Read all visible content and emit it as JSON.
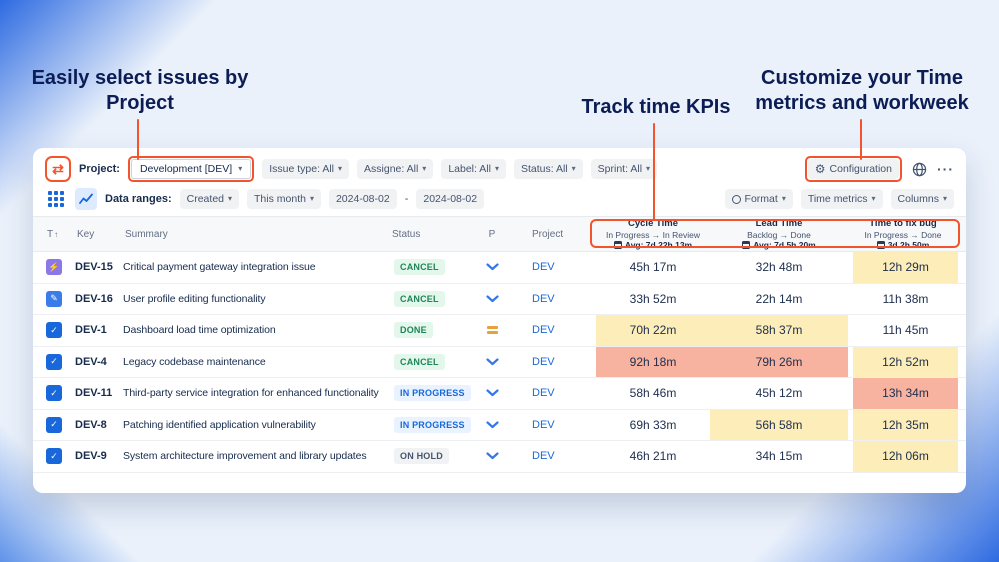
{
  "colors": {
    "accent_orange": "#F2542D",
    "highlight_yellow": "#FCEDB9",
    "highlight_red": "#F8B2A0",
    "link_blue": "#1868DB"
  },
  "icons": {
    "chevron_down": "▾",
    "gear": "⚙",
    "app_logo": "⇄",
    "more": "···",
    "sort_up": "↑"
  },
  "annotations": {
    "left_line1": "Easily select issues by",
    "left_line2": "Project",
    "center": "Track time KPIs",
    "right_line1": "Customize your Time",
    "right_line2": "metrics and workweek"
  },
  "toolbar": {
    "project_label": "Project:",
    "project_value": "Development [DEV]",
    "filters": [
      {
        "label": "Issue type: All"
      },
      {
        "label": "Assigne: All"
      },
      {
        "label": "Label: All"
      },
      {
        "label": "Status: All"
      },
      {
        "label": "Sprint: All"
      }
    ],
    "configuration_label": "Configuration"
  },
  "subtoolbar": {
    "data_ranges_label": "Data ranges:",
    "created_value": "Created",
    "period_value": "This month",
    "date_from": "2024-08-02",
    "date_separator": "-",
    "date_to": "2024-08-02",
    "format_label": "Format",
    "time_metrics_label": "Time metrics",
    "columns_label": "Columns"
  },
  "table": {
    "headers": {
      "t": "T",
      "key": "Key",
      "summary": "Summary",
      "status": "Status",
      "p": "P",
      "project": "Project"
    },
    "metrics": [
      {
        "title": "Cycle Time",
        "subtitle": "In Progress → In Review",
        "avg": "Avg: 7d 22h 13m"
      },
      {
        "title": "Lead Time",
        "subtitle": "Backlog → Done",
        "avg": "Avg: 7d 5h 20m"
      },
      {
        "title": "Time to fix bug",
        "subtitle": "In Progress → Done",
        "avg": "3d 2h 50m"
      }
    ],
    "rows": [
      {
        "type": "bolt",
        "key": "DEV-15",
        "summary": "Critical payment gateway integration issue",
        "status": "CANCEL",
        "status_kind": "cancel",
        "priority": "chevron",
        "project": "DEV",
        "cycle": "45h 17m",
        "cycle_bg": "w",
        "lead": "32h 48m",
        "lead_bg": "w",
        "fix": "12h 29m",
        "fix_bg": "y"
      },
      {
        "type": "pencil",
        "key": "DEV-16",
        "summary": "User profile editing functionality",
        "status": "CANCEL",
        "status_kind": "cancel",
        "priority": "chevron",
        "project": "DEV",
        "cycle": "33h 52m",
        "cycle_bg": "w",
        "lead": "22h 14m",
        "lead_bg": "w",
        "fix": "11h 38m",
        "fix_bg": "w"
      },
      {
        "type": "check",
        "key": "DEV-1",
        "summary": "Dashboard load time optimization",
        "status": "DONE",
        "status_kind": "done",
        "priority": "equal",
        "project": "DEV",
        "cycle": "70h 22m",
        "cycle_bg": "y",
        "lead": "58h 37m",
        "lead_bg": "y",
        "fix": "11h 45m",
        "fix_bg": "w"
      },
      {
        "type": "check",
        "key": "DEV-4",
        "summary": "Legacy codebase maintenance",
        "status": "CANCEL",
        "status_kind": "cancel",
        "priority": "chevron",
        "project": "DEV",
        "cycle": "92h 18m",
        "cycle_bg": "r",
        "lead": "79h 26m",
        "lead_bg": "r",
        "fix": "12h 52m",
        "fix_bg": "y"
      },
      {
        "type": "check",
        "key": "DEV-11",
        "summary": "Third-party service integration for enhanced functionality",
        "status": "IN PROGRESS",
        "status_kind": "inprogress",
        "priority": "chevron",
        "project": "DEV",
        "cycle": "58h 46m",
        "cycle_bg": "w",
        "lead": "45h 12m",
        "lead_bg": "w",
        "fix": "13h 34m",
        "fix_bg": "r"
      },
      {
        "type": "check",
        "key": "DEV-8",
        "summary": "Patching identified application vulnerability",
        "status": "IN PROGRESS",
        "status_kind": "inprogress",
        "priority": "chevron",
        "project": "DEV",
        "cycle": "69h 33m",
        "cycle_bg": "w",
        "lead": "56h 58m",
        "lead_bg": "y",
        "fix": "12h 35m",
        "fix_bg": "y"
      },
      {
        "type": "check",
        "key": "DEV-9",
        "summary": "System architecture improvement and library updates",
        "status": "ON HOLD",
        "status_kind": "onhold",
        "priority": "chevron",
        "project": "DEV",
        "cycle": "46h 21m",
        "cycle_bg": "w",
        "lead": "34h 15m",
        "lead_bg": "w",
        "fix": "12h 06m",
        "fix_bg": "y"
      }
    ]
  }
}
